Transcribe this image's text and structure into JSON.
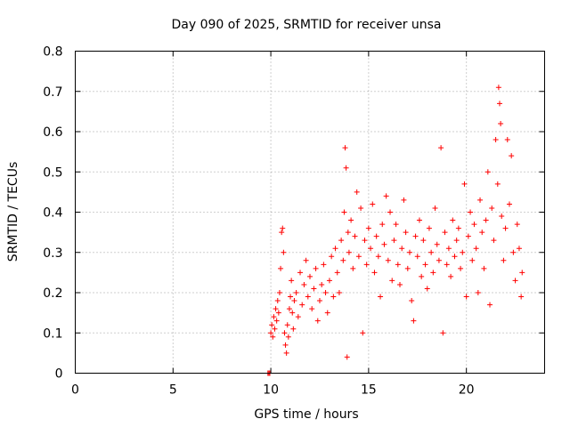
{
  "chart_data": {
    "type": "scatter",
    "title": "Day 090 of 2025, SRMTID for receiver unsa",
    "xlabel": "GPS time / hours",
    "ylabel": "SRMTID / TECUs",
    "xlim": [
      0,
      24
    ],
    "ylim": [
      0,
      0.8
    ],
    "xticks": [
      0,
      5,
      10,
      15,
      20
    ],
    "xtick_labels": [
      "0",
      "5",
      "10",
      "15",
      "20"
    ],
    "yticks": [
      0,
      0.1,
      0.2,
      0.3,
      0.4,
      0.5,
      0.6,
      0.7,
      0.8
    ],
    "ytick_labels": [
      "0",
      "0.1",
      "0.2",
      "0.3",
      "0.4",
      "0.5",
      "0.6",
      "0.7",
      "0.8"
    ],
    "grid": true,
    "marker": "+",
    "color": "#ff0000",
    "series": [
      {
        "name": "SRMTID",
        "points": [
          [
            9.85,
            0.0
          ],
          [
            9.9,
            0.0
          ],
          [
            9.95,
            0.0
          ],
          [
            10.0,
            0.1
          ],
          [
            10.05,
            0.12
          ],
          [
            10.1,
            0.09
          ],
          [
            10.15,
            0.14
          ],
          [
            10.2,
            0.11
          ],
          [
            10.25,
            0.16
          ],
          [
            10.3,
            0.13
          ],
          [
            10.35,
            0.18
          ],
          [
            10.4,
            0.15
          ],
          [
            10.45,
            0.2
          ],
          [
            10.5,
            0.26
          ],
          [
            10.55,
            0.35
          ],
          [
            10.6,
            0.36
          ],
          [
            10.65,
            0.3
          ],
          [
            10.7,
            0.1
          ],
          [
            10.75,
            0.07
          ],
          [
            10.8,
            0.05
          ],
          [
            10.85,
            0.12
          ],
          [
            10.9,
            0.09
          ],
          [
            10.95,
            0.16
          ],
          [
            11.0,
            0.19
          ],
          [
            11.05,
            0.23
          ],
          [
            11.1,
            0.15
          ],
          [
            11.15,
            0.11
          ],
          [
            11.2,
            0.18
          ],
          [
            11.3,
            0.2
          ],
          [
            11.4,
            0.14
          ],
          [
            11.5,
            0.25
          ],
          [
            11.6,
            0.17
          ],
          [
            11.7,
            0.22
          ],
          [
            11.8,
            0.28
          ],
          [
            11.9,
            0.19
          ],
          [
            12.0,
            0.24
          ],
          [
            12.1,
            0.16
          ],
          [
            12.2,
            0.21
          ],
          [
            12.3,
            0.26
          ],
          [
            12.4,
            0.13
          ],
          [
            12.5,
            0.18
          ],
          [
            12.6,
            0.22
          ],
          [
            12.7,
            0.27
          ],
          [
            12.8,
            0.2
          ],
          [
            12.9,
            0.15
          ],
          [
            13.0,
            0.23
          ],
          [
            13.1,
            0.29
          ],
          [
            13.2,
            0.19
          ],
          [
            13.3,
            0.31
          ],
          [
            13.4,
            0.25
          ],
          [
            13.5,
            0.2
          ],
          [
            13.6,
            0.33
          ],
          [
            13.7,
            0.28
          ],
          [
            13.75,
            0.4
          ],
          [
            13.8,
            0.56
          ],
          [
            13.85,
            0.51
          ],
          [
            13.9,
            0.04
          ],
          [
            13.95,
            0.35
          ],
          [
            14.0,
            0.3
          ],
          [
            14.1,
            0.38
          ],
          [
            14.2,
            0.26
          ],
          [
            14.3,
            0.34
          ],
          [
            14.4,
            0.45
          ],
          [
            14.5,
            0.29
          ],
          [
            14.6,
            0.41
          ],
          [
            14.7,
            0.1
          ],
          [
            14.8,
            0.33
          ],
          [
            14.9,
            0.27
          ],
          [
            15.0,
            0.36
          ],
          [
            15.1,
            0.31
          ],
          [
            15.2,
            0.42
          ],
          [
            15.3,
            0.25
          ],
          [
            15.4,
            0.34
          ],
          [
            15.5,
            0.29
          ],
          [
            15.6,
            0.19
          ],
          [
            15.7,
            0.37
          ],
          [
            15.8,
            0.32
          ],
          [
            15.9,
            0.44
          ],
          [
            16.0,
            0.28
          ],
          [
            16.1,
            0.4
          ],
          [
            16.2,
            0.23
          ],
          [
            16.3,
            0.33
          ],
          [
            16.4,
            0.37
          ],
          [
            16.5,
            0.27
          ],
          [
            16.6,
            0.22
          ],
          [
            16.7,
            0.31
          ],
          [
            16.8,
            0.43
          ],
          [
            16.9,
            0.35
          ],
          [
            17.0,
            0.26
          ],
          [
            17.1,
            0.3
          ],
          [
            17.2,
            0.18
          ],
          [
            17.3,
            0.13
          ],
          [
            17.4,
            0.34
          ],
          [
            17.5,
            0.29
          ],
          [
            17.6,
            0.38
          ],
          [
            17.7,
            0.24
          ],
          [
            17.8,
            0.33
          ],
          [
            17.9,
            0.27
          ],
          [
            18.0,
            0.21
          ],
          [
            18.1,
            0.36
          ],
          [
            18.2,
            0.3
          ],
          [
            18.3,
            0.25
          ],
          [
            18.4,
            0.41
          ],
          [
            18.5,
            0.32
          ],
          [
            18.6,
            0.28
          ],
          [
            18.7,
            0.56
          ],
          [
            18.8,
            0.1
          ],
          [
            18.9,
            0.35
          ],
          [
            19.0,
            0.27
          ],
          [
            19.1,
            0.31
          ],
          [
            19.2,
            0.24
          ],
          [
            19.3,
            0.38
          ],
          [
            19.4,
            0.29
          ],
          [
            19.5,
            0.33
          ],
          [
            19.6,
            0.36
          ],
          [
            19.7,
            0.26
          ],
          [
            19.8,
            0.3
          ],
          [
            19.9,
            0.47
          ],
          [
            20.0,
            0.19
          ],
          [
            20.1,
            0.34
          ],
          [
            20.2,
            0.4
          ],
          [
            20.3,
            0.28
          ],
          [
            20.4,
            0.37
          ],
          [
            20.5,
            0.31
          ],
          [
            20.6,
            0.2
          ],
          [
            20.7,
            0.43
          ],
          [
            20.8,
            0.35
          ],
          [
            20.9,
            0.26
          ],
          [
            21.0,
            0.38
          ],
          [
            21.1,
            0.5
          ],
          [
            21.2,
            0.17
          ],
          [
            21.3,
            0.41
          ],
          [
            21.4,
            0.33
          ],
          [
            21.5,
            0.58
          ],
          [
            21.6,
            0.47
          ],
          [
            21.65,
            0.71
          ],
          [
            21.7,
            0.67
          ],
          [
            21.75,
            0.62
          ],
          [
            21.8,
            0.39
          ],
          [
            21.9,
            0.28
          ],
          [
            22.0,
            0.36
          ],
          [
            22.1,
            0.58
          ],
          [
            22.2,
            0.42
          ],
          [
            22.3,
            0.54
          ],
          [
            22.4,
            0.3
          ],
          [
            22.5,
            0.23
          ],
          [
            22.6,
            0.37
          ],
          [
            22.7,
            0.31
          ],
          [
            22.8,
            0.19
          ],
          [
            22.85,
            0.25
          ]
        ]
      }
    ]
  }
}
